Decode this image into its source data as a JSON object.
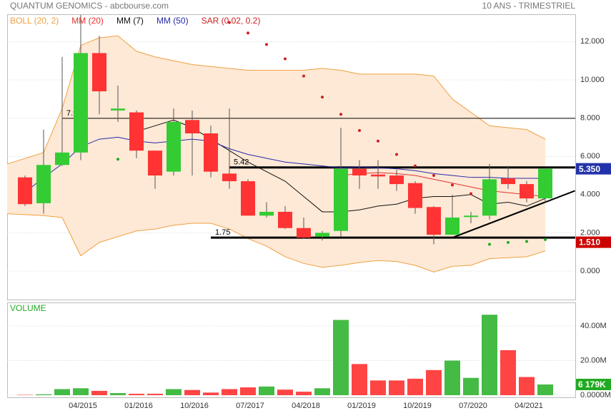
{
  "chart_data": [
    {
      "type": "candlestick",
      "title": "QUANTUM GENOMICS - abcbourse.com",
      "subtitle": "10 ANS - TRIMESTRIEL",
      "up_color": "#33cc33",
      "down_color": "#ff3333",
      "open": [
        4.9,
        3.55,
        5.55,
        6.2,
        11.4,
        8.4,
        8.3,
        6.3,
        5.2,
        7.9,
        7.2,
        5.1,
        4.7,
        2.9,
        3.1,
        2.25,
        1.8,
        2.1,
        5.35,
        5.05,
        5.0,
        4.6,
        3.35,
        1.9,
        2.85,
        2.9,
        4.85,
        4.55,
        3.8
      ],
      "high": [
        5.0,
        7.4,
        11.2,
        13.4,
        12.3,
        9.7,
        8.4,
        6.3,
        8.5,
        8.4,
        7.6,
        8.5,
        4.8,
        3.6,
        3.4,
        2.8,
        2.1,
        7.5,
        5.8,
        5.8,
        5.3,
        4.7,
        3.4,
        4.0,
        3.1,
        5.6,
        5.5,
        4.7,
        5.4
      ],
      "low": [
        3.4,
        3.0,
        5.5,
        5.8,
        8.2,
        7.8,
        5.9,
        4.3,
        5.0,
        5.0,
        4.9,
        4.3,
        2.9,
        2.8,
        2.2,
        1.7,
        1.6,
        1.8,
        4.3,
        4.3,
        4.2,
        3.0,
        1.4,
        1.9,
        2.5,
        2.7,
        4.3,
        3.6,
        3.6
      ],
      "close": [
        3.5,
        5.55,
        6.2,
        11.4,
        9.4,
        8.5,
        6.3,
        5.0,
        7.8,
        7.2,
        5.2,
        4.7,
        2.9,
        3.1,
        2.25,
        1.75,
        2.0,
        5.35,
        5.0,
        4.95,
        4.55,
        3.3,
        1.9,
        2.8,
        2.9,
        4.8,
        4.55,
        3.8,
        5.35
      ],
      "bollinger": {
        "name": "BOLL (20, 2)",
        "color": "#f0a040",
        "fill": "#fde9d6",
        "upper": [
          5.6,
          6.2,
          8.5,
          11.8,
          12.2,
          12.3,
          11.5,
          11.2,
          11.0,
          10.8,
          10.7,
          10.6,
          10.5,
          10.5,
          10.5,
          10.5,
          10.6,
          10.5,
          10.3,
          10.3,
          10.3,
          10.3,
          10.2,
          9.0,
          8.3,
          7.6,
          7.5,
          7.4,
          6.9
        ],
        "lower": [
          3.0,
          2.9,
          2.8,
          0.8,
          1.5,
          1.8,
          2.1,
          2.2,
          2.4,
          2.5,
          2.5,
          2.2,
          1.7,
          1.3,
          0.75,
          0.4,
          0.2,
          0.3,
          0.45,
          0.55,
          0.5,
          0.3,
          -0.05,
          0.25,
          0.3,
          0.65,
          0.7,
          0.75,
          1.05
        ]
      },
      "series": [
        {
          "name": "MM (20)",
          "color": "#e53030",
          "values": [
            null,
            null,
            null,
            null,
            null,
            null,
            null,
            null,
            null,
            null,
            null,
            null,
            null,
            null,
            null,
            null,
            null,
            5.0,
            5.1,
            5.15,
            5.1,
            5.0,
            4.8,
            4.6,
            4.4,
            4.2,
            4.1,
            4.0,
            3.9
          ]
        },
        {
          "name": "MM (7)",
          "color": "#111111",
          "values": [
            null,
            null,
            null,
            null,
            null,
            null,
            7.3,
            7.6,
            7.9,
            7.5,
            6.9,
            6.3,
            5.7,
            5.2,
            4.7,
            3.9,
            3.1,
            3.1,
            3.2,
            3.4,
            3.5,
            3.8,
            3.9,
            3.9,
            4.0,
            3.5,
            3.6,
            3.4,
            3.8
          ]
        },
        {
          "name": "MM (50)",
          "color": "#2a2aa8",
          "values": [
            4.1,
            4.9,
            5.6,
            6.5,
            6.9,
            7.0,
            6.8,
            6.7,
            6.8,
            6.9,
            6.8,
            6.4,
            6.1,
            5.9,
            5.7,
            5.6,
            5.5,
            5.4,
            5.45,
            5.4,
            5.35,
            5.25,
            5.1,
            5.0,
            4.9,
            4.9,
            4.85,
            4.85,
            4.85
          ]
        }
      ],
      "sar": {
        "name": "SAR (0.02, 0.2)",
        "color": "#cc2020",
        "below_color": "#22aa22",
        "values": [
          null,
          null,
          null,
          null,
          null,
          5.85,
          null,
          null,
          null,
          null,
          null,
          13.0,
          12.45,
          11.85,
          11.1,
          10.2,
          9.1,
          8.2,
          7.35,
          6.8,
          6.1,
          5.5,
          5.0,
          4.5,
          4.05,
          1.4,
          1.5,
          1.55,
          1.65
        ]
      },
      "levels": [
        {
          "value": 7.99,
          "from": 3,
          "width": 1
        },
        {
          "value": 5.42,
          "from": 12,
          "width": 3
        },
        {
          "value": 1.75,
          "from": 11,
          "width": 3
        }
      ],
      "trendline": {
        "x": [
          23,
          29.6
        ],
        "values": [
          1.75,
          4.2
        ]
      },
      "last_tags": [
        {
          "value": 5.35,
          "label": "5.350",
          "color": "#2233aa"
        },
        {
          "value": 1.51,
          "label": "1.510",
          "color": "#cc0000"
        }
      ],
      "ylim": [
        -1.49,
        13.43
      ],
      "yticks": [
        {
          "value": 0,
          "label": "0.000"
        },
        {
          "value": 2,
          "label": "2.000"
        },
        {
          "value": 4,
          "label": "4.000"
        },
        {
          "value": 6,
          "label": "6.000"
        },
        {
          "value": 8,
          "label": "8.000"
        },
        {
          "value": 10,
          "label": "10.000"
        },
        {
          "value": 12,
          "label": "12.000"
        }
      ],
      "grid": true
    },
    {
      "type": "bar",
      "title": "VOLUME",
      "categories": [
        null,
        null,
        null,
        "04/2015",
        null,
        null,
        "01/2016",
        null,
        null,
        "10/2016",
        null,
        null,
        "07/2017",
        null,
        null,
        "04/2018",
        null,
        null,
        "01/2019",
        null,
        null,
        "10/2019",
        null,
        null,
        "07/2020",
        null,
        null,
        "04/2021",
        null
      ],
      "values": [
        0.2,
        0.5,
        3.5,
        4.0,
        2.5,
        1.2,
        0.8,
        0.8,
        3.5,
        3.0,
        1.5,
        3.5,
        4.5,
        5.0,
        3.2,
        2.0,
        4.0,
        43.5,
        18.0,
        8.5,
        8.5,
        9.5,
        14.5,
        20.0,
        10.0,
        46.5,
        26.0,
        10.5,
        6.179
      ],
      "last_tag": {
        "value": 6.179,
        "label": "6 179K",
        "color": "#22aa22"
      },
      "ylim": [
        -1.24,
        53.2
      ],
      "yticks": [
        {
          "value": 0,
          "label": "0.0000M"
        },
        {
          "value": 20,
          "label": "20.00M"
        },
        {
          "value": 40,
          "label": "40.00M"
        }
      ],
      "grid": true
    }
  ]
}
